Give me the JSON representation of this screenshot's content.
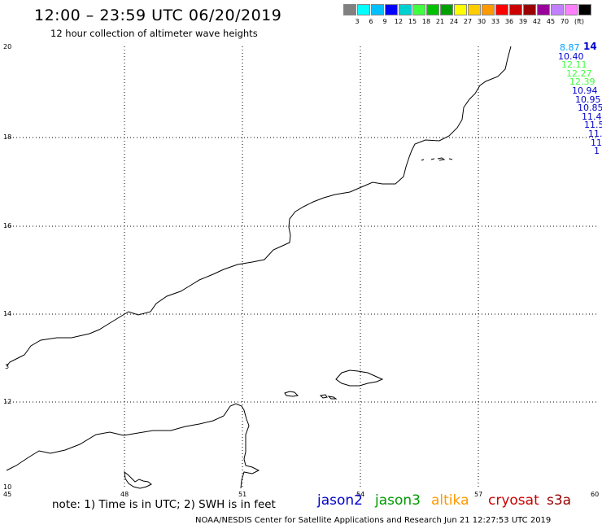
{
  "header": {
    "title": "12:00 – 23:59 UTC 06/20/2019",
    "subtitle": "12 hour collection of altimeter wave heights"
  },
  "legend": {
    "colors": [
      "#808080",
      "#00ffff",
      "#00c0ff",
      "#0000ff",
      "#00d0d0",
      "#40ff40",
      "#00c000",
      "#00a000",
      "#ffff00",
      "#ffcc00",
      "#ff9900",
      "#ff0000",
      "#cc0000",
      "#990000",
      "#990099",
      "#c080ff",
      "#ff80ff",
      "#000000"
    ],
    "labels": [
      "3",
      "6",
      "9",
      "12",
      "15",
      "18",
      "21",
      "24",
      "27",
      "30",
      "33",
      "36",
      "39",
      "42",
      "45",
      "70"
    ],
    "unit": "(ft)"
  },
  "axes": {
    "y_labels": [
      "20",
      "18",
      "16",
      "14",
      "12",
      "10"
    ],
    "x_labels": [
      "45",
      "48",
      "51",
      "54",
      "57",
      "60"
    ],
    "edge_label": "3"
  },
  "wave_heights": [
    {
      "text": "8.87",
      "color": "#00a0ff"
    },
    {
      "text": "10.40",
      "color": "#0000cc"
    },
    {
      "text": "12.11",
      "color": "#40ff40"
    },
    {
      "text": "12.27",
      "color": "#40ff40"
    },
    {
      "text": "12.39",
      "color": "#40ff40"
    },
    {
      "text": "10.94",
      "color": "#0000cc"
    },
    {
      "text": "10.95",
      "color": "#0000cc"
    },
    {
      "text": "10.85",
      "color": "#0000cc"
    },
    {
      "text": "11.4",
      "color": "#0000cc"
    },
    {
      "text": "11.5",
      "color": "#0000cc"
    },
    {
      "text": "11.",
      "color": "#0000cc"
    },
    {
      "text": "11",
      "color": "#0000cc"
    },
    {
      "text": "1",
      "color": "#0000cc"
    }
  ],
  "corner_value": {
    "text": "14",
    "color": "#0000cc"
  },
  "footer": {
    "note": "note: 1) Time is in UTC; 2) SWH is in feet",
    "missions": [
      {
        "name": "jason2",
        "color": "#0000cc"
      },
      {
        "name": "jason3",
        "color": "#009900"
      },
      {
        "name": "altika",
        "color": "#ff9900"
      },
      {
        "name": "cryosat",
        "color": "#cc0000"
      },
      {
        "name": "s3a",
        "color": "#990000"
      }
    ],
    "credit": "NOAA/NESDIS Center for Satellite Applications and Research    Jun 21 12:27:53 UTC 2019"
  }
}
